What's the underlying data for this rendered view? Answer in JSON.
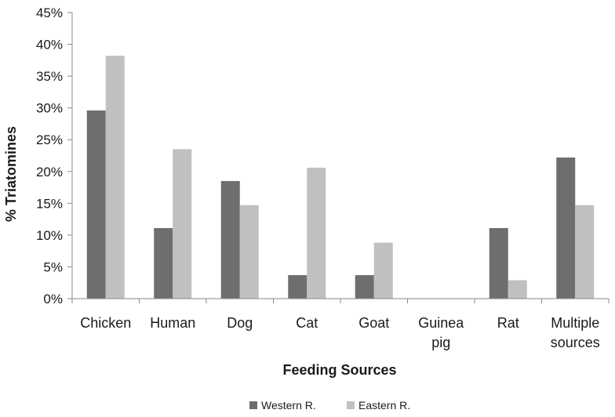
{
  "chart_data": {
    "type": "bar",
    "title": "",
    "xlabel": "Feeding Sources",
    "ylabel": "% Triatomines",
    "ylim": [
      0,
      45
    ],
    "yticks": [
      "0%",
      "5%",
      "10%",
      "15%",
      "20%",
      "25%",
      "30%",
      "35%",
      "40%",
      "45%"
    ],
    "grid": false,
    "legend_position": "bottom",
    "categories": [
      [
        "Chicken"
      ],
      [
        "Human"
      ],
      [
        "Dog"
      ],
      [
        "Cat"
      ],
      [
        "Goat"
      ],
      [
        "Guinea",
        "pig"
      ],
      [
        "Rat"
      ],
      [
        "Multiple",
        "sources"
      ]
    ],
    "series": [
      {
        "name": "Western R.",
        "color": "#6e6e6e",
        "values": [
          29.6,
          11.1,
          18.5,
          3.7,
          3.7,
          0,
          11.1,
          22.2
        ]
      },
      {
        "name": "Eastern R.",
        "color": "#c0c0c0",
        "values": [
          38.2,
          23.5,
          14.7,
          20.6,
          8.8,
          0,
          2.9,
          14.7
        ]
      }
    ]
  }
}
